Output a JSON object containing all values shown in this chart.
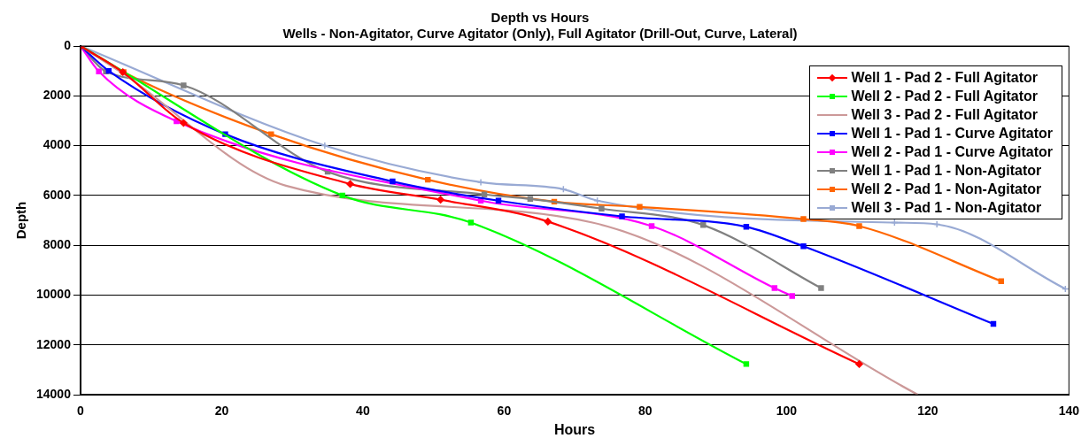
{
  "chart_data": {
    "type": "line",
    "title": "Depth vs Hours",
    "subtitle": "Wells - Non-Agitator, Curve Agitator (Only), Full Agitator (Drill-Out, Curve, Lateral)",
    "xlabel": "Hours",
    "ylabel": "Depth",
    "xlim": [
      0,
      140
    ],
    "xticks": [
      0,
      20,
      40,
      60,
      80,
      100,
      120,
      140
    ],
    "ylim": [
      14000,
      0
    ],
    "yticks": [
      0,
      2000,
      4000,
      6000,
      8000,
      10000,
      12000,
      14000
    ],
    "grid": "y",
    "legend": "top right",
    "line_style": "solid",
    "series": [
      {
        "name": "Well 1 - Pad 2 - Full Agitator",
        "color": "#ff0000",
        "marker": "diamond",
        "x": [
          0,
          6,
          14.6,
          38.2,
          51,
          66.2,
          110.3
        ],
        "values": [
          0,
          1050,
          3090,
          5540,
          6170,
          7050,
          12770
        ]
      },
      {
        "name": "Well 2 - Pad 2 - Full Agitator",
        "color": "#00ff00",
        "marker": "square",
        "x": [
          0,
          37.1,
          55.3,
          94.3
        ],
        "values": [
          0,
          6000,
          7090,
          12770
        ]
      },
      {
        "name": "Well 3 - Pad 2 - Full Agitator",
        "color": "#cc9999",
        "marker": "none",
        "x": [
          0,
          6,
          29.1,
          72.5,
          118.6
        ],
        "values": [
          0,
          1100,
          5610,
          7090,
          14000
        ]
      },
      {
        "name": "Well 1 - Pad 1 - Curve Agitator",
        "color": "#0000ff",
        "marker": "square",
        "x": [
          0,
          4,
          20.5,
          44.2,
          59.2,
          76.7,
          94.3,
          102.4,
          129.3
        ],
        "values": [
          0,
          1000,
          3540,
          5440,
          6210,
          6840,
          7260,
          8040,
          11160
        ]
      },
      {
        "name": "Well 2 - Pad 1 - Curve Agitator",
        "color": "#ff00ff",
        "marker": "square",
        "x": [
          0,
          2.6,
          13.6,
          56.7,
          80.9,
          98.3,
          100.8
        ],
        "values": [
          0,
          1020,
          3020,
          6210,
          7230,
          9720,
          10040
        ]
      },
      {
        "name": "Well 1 - Pad 1 - Non-Agitator",
        "color": "#808080",
        "marker": "square",
        "x": [
          0,
          3.6,
          14.6,
          35,
          57.2,
          63.7,
          73.8,
          88.2,
          104.9
        ],
        "values": [
          0,
          1020,
          1580,
          5050,
          5960,
          6140,
          6530,
          7190,
          9720
        ]
      },
      {
        "name": "Well 2 - Pad 1 - Non-Agitator",
        "color": "#ff6600",
        "marker": "square",
        "x": [
          0,
          6.1,
          27,
          49.2,
          67.1,
          79.2,
          102.4,
          110.3,
          130.4
        ],
        "values": [
          0,
          1050,
          3540,
          5370,
          6250,
          6460,
          6950,
          7230,
          9440
        ]
      },
      {
        "name": "Well 3 - Pad 1 - Non-Agitator",
        "color": "#99aad4",
        "marker": "cross",
        "x": [
          0,
          34.6,
          56.7,
          68.4,
          73.2,
          115.3,
          121.3,
          139.5
        ],
        "values": [
          0,
          4000,
          5470,
          5750,
          6210,
          7090,
          7160,
          9750
        ]
      }
    ]
  }
}
